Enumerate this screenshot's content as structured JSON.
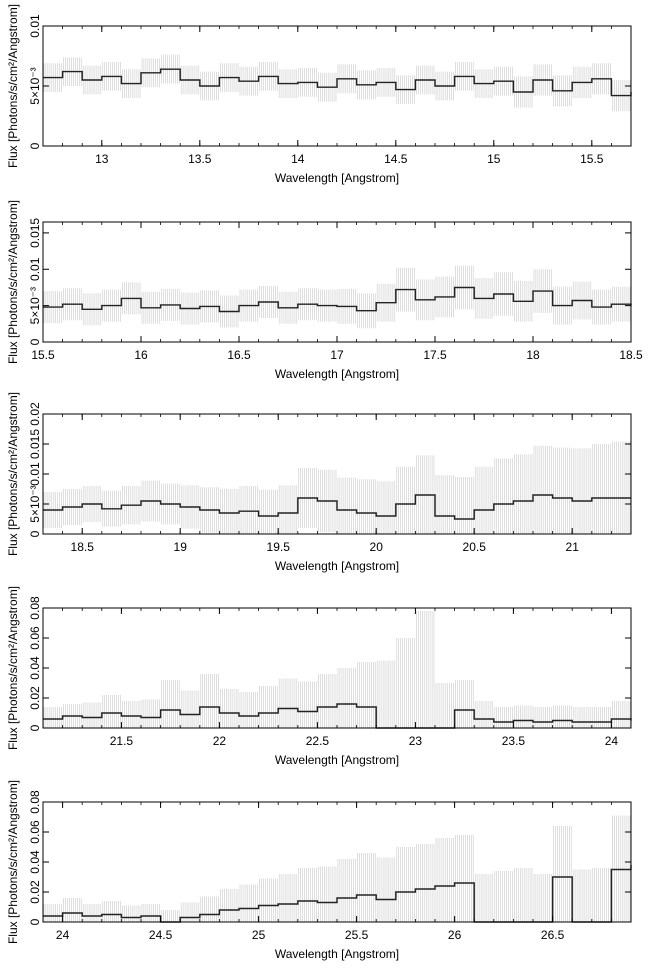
{
  "chart_data": [
    {
      "type": "histogram-step",
      "xlabel": "Wavelength [Angstrom]",
      "ylabel": "Flux [Photons/s/cm²/Angstrom]",
      "xlim": [
        12.7,
        15.7
      ],
      "ylim": [
        0,
        0.01
      ],
      "xticks": [
        13,
        13.5,
        14,
        14.5,
        15,
        15.5
      ],
      "xtick_labels": [
        "13",
        "13.5",
        "14",
        "14.5",
        "15",
        "15.5"
      ],
      "yticks": [
        0,
        0.005,
        0.01
      ],
      "ytick_labels": [
        "0",
        "5×10⁻³",
        "0.01"
      ],
      "x": [
        12.7,
        12.8,
        12.9,
        13.0,
        13.1,
        13.2,
        13.3,
        13.4,
        13.5,
        13.6,
        13.7,
        13.8,
        13.9,
        14.0,
        14.1,
        14.2,
        14.3,
        14.4,
        14.5,
        14.6,
        14.7,
        14.8,
        14.9,
        15.0,
        15.1,
        15.2,
        15.3,
        15.4,
        15.5,
        15.6,
        15.7
      ],
      "flux": [
        0.0057,
        0.0062,
        0.0055,
        0.0058,
        0.0052,
        0.0061,
        0.0064,
        0.0055,
        0.005,
        0.0057,
        0.0054,
        0.0058,
        0.0052,
        0.0053,
        0.0049,
        0.0056,
        0.0051,
        0.0053,
        0.0047,
        0.0055,
        0.005,
        0.0058,
        0.0052,
        0.0054,
        0.0045,
        0.0055,
        0.0046,
        0.0053,
        0.0056,
        0.0042,
        0.0045
      ],
      "error": [
        0.0012,
        0.0012,
        0.0012,
        0.0012,
        0.0012,
        0.0012,
        0.0012,
        0.0012,
        0.0012,
        0.0012,
        0.0012,
        0.0012,
        0.0012,
        0.0012,
        0.0012,
        0.0012,
        0.0012,
        0.0012,
        0.0012,
        0.0012,
        0.0012,
        0.0012,
        0.0012,
        0.0012,
        0.0013,
        0.0013,
        0.0013,
        0.0013,
        0.0013,
        0.0013,
        0.0013
      ]
    },
    {
      "type": "histogram-step",
      "xlabel": "Wavelength [Angstrom]",
      "ylabel": "Flux [Photons/s/cm²/Angstrom]",
      "xlim": [
        15.5,
        18.5
      ],
      "ylim": [
        0,
        0.0165
      ],
      "xticks": [
        15.5,
        16,
        16.5,
        17,
        17.5,
        18,
        18.5
      ],
      "xtick_labels": [
        "15.5",
        "16",
        "16.5",
        "17",
        "17.5",
        "18",
        "18.5"
      ],
      "yticks": [
        0,
        0.005,
        0.01,
        0.015
      ],
      "ytick_labels": [
        "0",
        "5×10⁻³",
        "0.01",
        "0.015"
      ],
      "x": [
        15.5,
        15.6,
        15.7,
        15.8,
        15.9,
        16.0,
        16.1,
        16.2,
        16.3,
        16.4,
        16.5,
        16.6,
        16.7,
        16.8,
        16.9,
        17.0,
        17.1,
        17.2,
        17.3,
        17.4,
        17.5,
        17.6,
        17.7,
        17.8,
        17.9,
        18.0,
        18.1,
        18.2,
        18.3,
        18.4,
        18.5
      ],
      "flux": [
        0.0048,
        0.0052,
        0.0045,
        0.005,
        0.006,
        0.0047,
        0.0051,
        0.0046,
        0.0049,
        0.0042,
        0.005,
        0.0055,
        0.0047,
        0.0052,
        0.005,
        0.0049,
        0.0043,
        0.0054,
        0.0072,
        0.0058,
        0.0062,
        0.0075,
        0.006,
        0.0066,
        0.0056,
        0.007,
        0.005,
        0.0057,
        0.0048,
        0.0052,
        0.005
      ],
      "error": [
        0.0022,
        0.0022,
        0.0022,
        0.0022,
        0.0022,
        0.0022,
        0.0022,
        0.0022,
        0.0022,
        0.0022,
        0.0022,
        0.0022,
        0.0022,
        0.0022,
        0.0022,
        0.0024,
        0.0024,
        0.0026,
        0.003,
        0.0028,
        0.0028,
        0.003,
        0.0028,
        0.003,
        0.0028,
        0.003,
        0.0026,
        0.0026,
        0.0024,
        0.0024,
        0.0024
      ]
    },
    {
      "type": "histogram-step",
      "xlabel": "Wavelength [Angstrom]",
      "ylabel": "Flux [Photons/s/cm²/Angstrom]",
      "xlim": [
        18.3,
        21.3
      ],
      "ylim": [
        0,
        0.02
      ],
      "xticks": [
        18.5,
        19,
        19.5,
        20,
        20.5,
        21
      ],
      "xtick_labels": [
        "18.5",
        "19",
        "19.5",
        "20",
        "20.5",
        "21"
      ],
      "yticks": [
        0,
        0.005,
        0.01,
        0.015,
        0.02
      ],
      "ytick_labels": [
        "0",
        "5×10⁻³",
        "0.01",
        "0.015",
        "0.02"
      ],
      "x": [
        18.3,
        18.4,
        18.5,
        18.6,
        18.7,
        18.8,
        18.9,
        19.0,
        19.1,
        19.2,
        19.3,
        19.4,
        19.5,
        19.6,
        19.7,
        19.8,
        19.9,
        20.0,
        20.1,
        20.2,
        20.3,
        20.4,
        20.5,
        20.6,
        20.7,
        20.8,
        20.9,
        21.0,
        21.1,
        21.2,
        21.3
      ],
      "flux": [
        0.004,
        0.0045,
        0.005,
        0.0042,
        0.0048,
        0.0055,
        0.005,
        0.0045,
        0.004,
        0.0035,
        0.0038,
        0.003,
        0.0035,
        0.006,
        0.0055,
        0.004,
        0.0035,
        0.003,
        0.005,
        0.0065,
        0.003,
        0.0025,
        0.004,
        0.005,
        0.0055,
        0.0065,
        0.006,
        0.0055,
        0.006,
        0.006,
        0.006
      ],
      "error": [
        0.003,
        0.003,
        0.003,
        0.003,
        0.0032,
        0.0034,
        0.0034,
        0.0036,
        0.0038,
        0.004,
        0.0042,
        0.0044,
        0.0046,
        0.005,
        0.0052,
        0.0054,
        0.0056,
        0.0058,
        0.0062,
        0.0066,
        0.0068,
        0.007,
        0.0072,
        0.0076,
        0.0078,
        0.0082,
        0.0084,
        0.0088,
        0.009,
        0.0094,
        0.0098
      ]
    },
    {
      "type": "histogram-step",
      "xlabel": "Wavelength [Angstrom]",
      "ylabel": "Flux [Photons/s/cm²/Angstrom]",
      "xlim": [
        21.1,
        24.1
      ],
      "ylim": [
        0,
        0.08
      ],
      "xticks": [
        21.5,
        22,
        22.5,
        23,
        23.5,
        24
      ],
      "xtick_labels": [
        "21.5",
        "22",
        "22.5",
        "23",
        "23.5",
        "24"
      ],
      "yticks": [
        0,
        0.02,
        0.04,
        0.06,
        0.08
      ],
      "ytick_labels": [
        "0",
        "0.02",
        "0.04",
        "0.06",
        "0.08"
      ],
      "x": [
        21.1,
        21.2,
        21.3,
        21.4,
        21.5,
        21.6,
        21.7,
        21.8,
        21.9,
        22.0,
        22.1,
        22.2,
        22.3,
        22.4,
        22.5,
        22.6,
        22.7,
        22.8,
        22.9,
        23.0,
        23.1,
        23.2,
        23.3,
        23.4,
        23.5,
        23.6,
        23.7,
        23.8,
        23.9,
        24.0,
        24.1
      ],
      "flux": [
        0.006,
        0.008,
        0.007,
        0.01,
        0.008,
        0.007,
        0.012,
        0.009,
        0.014,
        0.01,
        0.008,
        0.01,
        0.013,
        0.011,
        0.014,
        0.016,
        0.014,
        0.0,
        0.0,
        0.0,
        0.0,
        0.012,
        0.006,
        0.004,
        0.005,
        0.004,
        0.005,
        0.004,
        0.004,
        0.006,
        0.005
      ],
      "error": [
        0.008,
        0.008,
        0.01,
        0.012,
        0.01,
        0.012,
        0.02,
        0.016,
        0.022,
        0.016,
        0.016,
        0.018,
        0.02,
        0.02,
        0.022,
        0.024,
        0.03,
        0.045,
        0.06,
        0.078,
        0.03,
        0.02,
        0.012,
        0.01,
        0.01,
        0.01,
        0.01,
        0.01,
        0.01,
        0.012,
        0.012
      ]
    },
    {
      "type": "histogram-step",
      "xlabel": "Wavelength [Angstrom]",
      "ylabel": "Flux [Photons/s/cm²/Angstrom]",
      "xlim": [
        23.9,
        26.9
      ],
      "ylim": [
        0,
        0.08
      ],
      "xticks": [
        24,
        24.5,
        25,
        25.5,
        26,
        26.5
      ],
      "xtick_labels": [
        "24",
        "24.5",
        "25",
        "25.5",
        "26",
        "26.5"
      ],
      "yticks": [
        0,
        0.02,
        0.04,
        0.06,
        0.08
      ],
      "ytick_labels": [
        "0",
        "0.02",
        "0.04",
        "0.06",
        "0.08"
      ],
      "x": [
        23.9,
        24.0,
        24.1,
        24.2,
        24.3,
        24.4,
        24.5,
        24.6,
        24.7,
        24.8,
        24.9,
        25.0,
        25.1,
        25.2,
        25.3,
        25.4,
        25.5,
        25.6,
        25.7,
        25.8,
        25.9,
        26.0,
        26.1,
        26.2,
        26.3,
        26.4,
        26.5,
        26.6,
        26.7,
        26.8,
        26.9
      ],
      "flux": [
        0.004,
        0.006,
        0.004,
        0.005,
        0.003,
        0.004,
        0.0,
        0.003,
        0.005,
        0.008,
        0.009,
        0.011,
        0.012,
        0.014,
        0.013,
        0.016,
        0.018,
        0.015,
        0.02,
        0.022,
        0.024,
        0.026,
        0.0,
        0.0,
        0.0,
        0.0,
        0.03,
        0.0,
        0.0,
        0.035,
        0.038
      ],
      "error": [
        0.008,
        0.01,
        0.008,
        0.009,
        0.008,
        0.008,
        0.008,
        0.01,
        0.012,
        0.014,
        0.016,
        0.018,
        0.02,
        0.022,
        0.024,
        0.026,
        0.028,
        0.028,
        0.03,
        0.03,
        0.032,
        0.032,
        0.032,
        0.034,
        0.036,
        0.032,
        0.034,
        0.035,
        0.036,
        0.036,
        0.038
      ]
    }
  ]
}
